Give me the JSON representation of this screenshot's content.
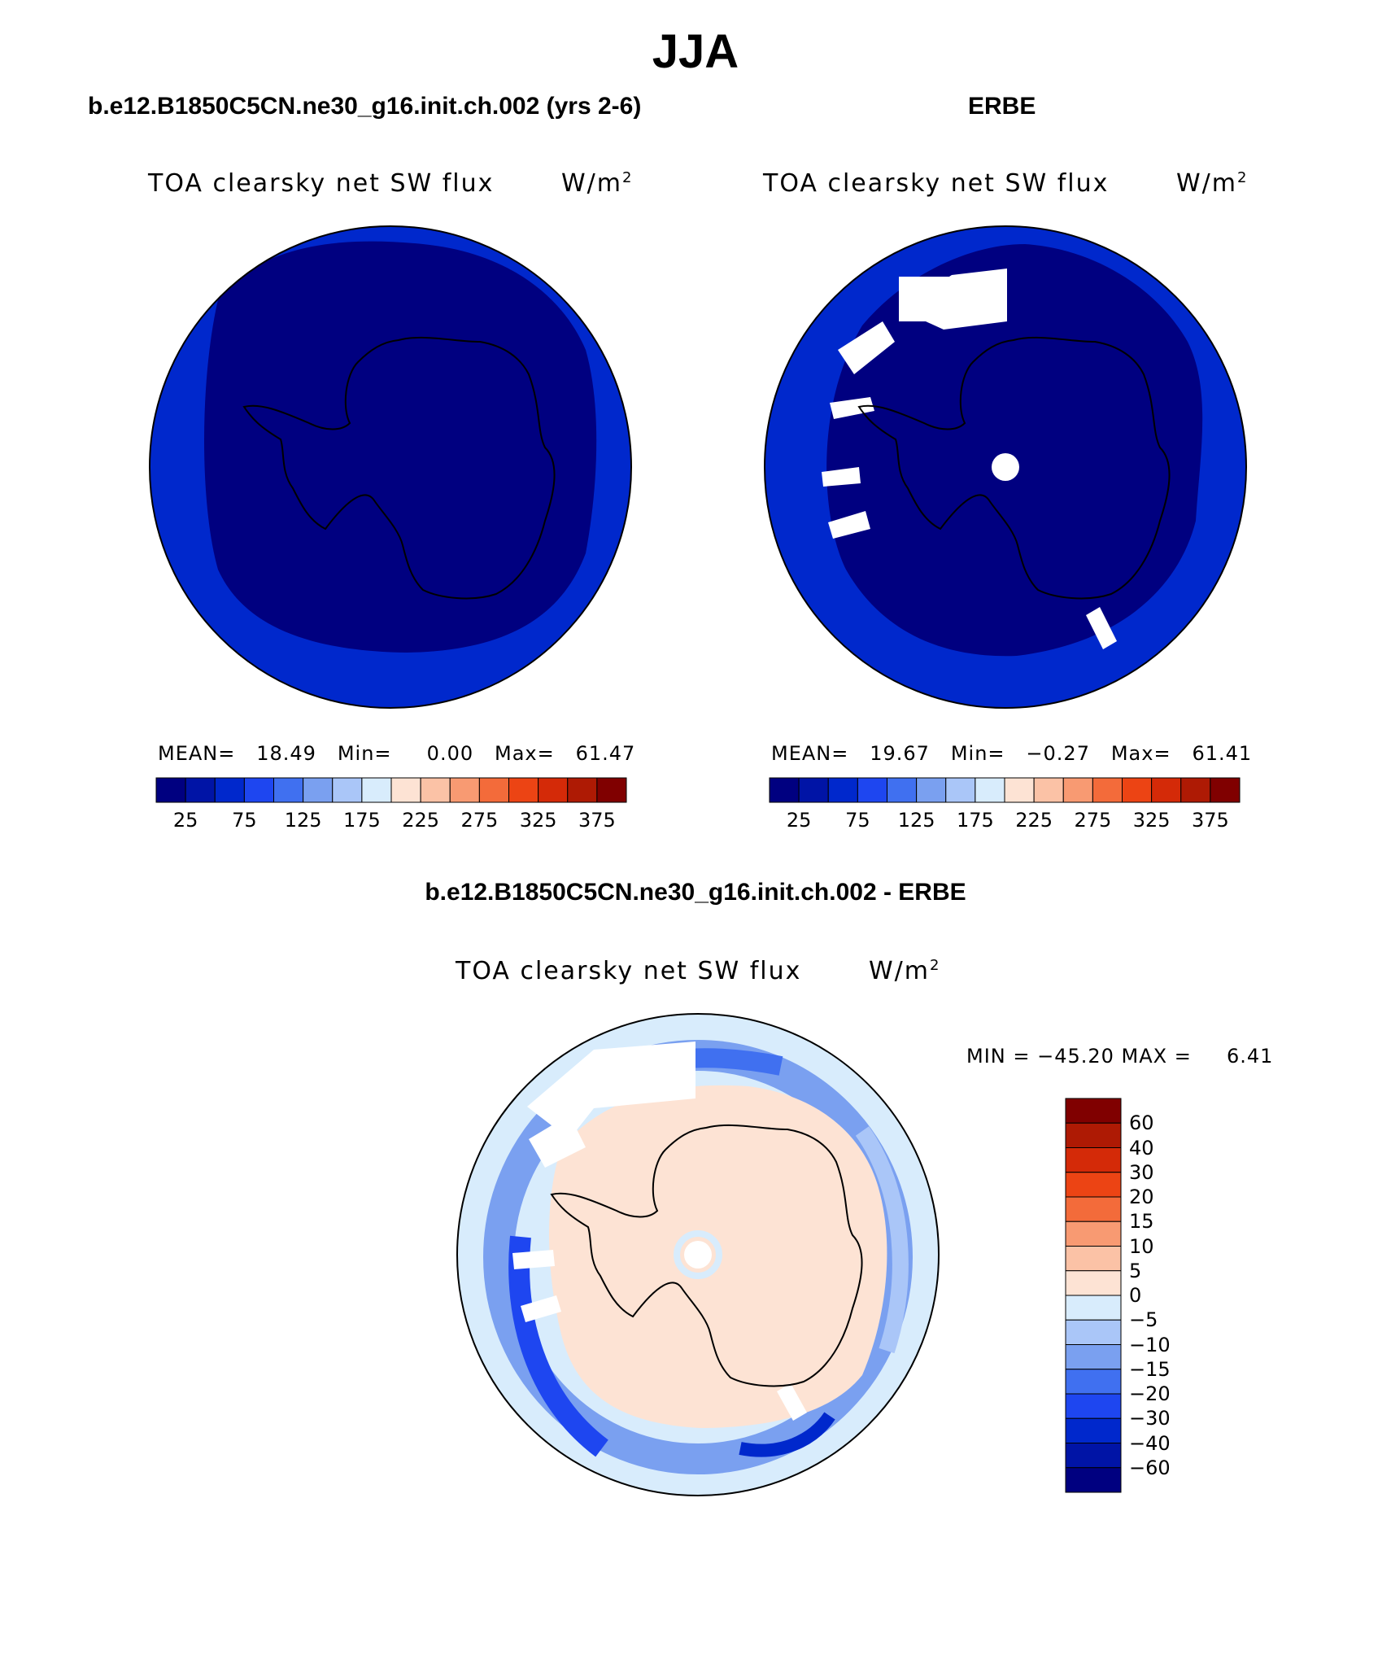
{
  "figure_title": "JJA",
  "colors": {
    "abs_scale": [
      "#000080",
      "#0014a6",
      "#0028cc",
      "#1e46f0",
      "#4070f0",
      "#7aa0f0",
      "#aac6f8",
      "#d8ecfc",
      "#fde3d4",
      "#fbc2a6",
      "#f89a72",
      "#f36b3a",
      "#ec4414",
      "#d42a08",
      "#ae1a04",
      "#800000"
    ],
    "diff_scale": [
      "#000080",
      "#0014a6",
      "#0028cc",
      "#1e46f0",
      "#4070f0",
      "#7aa0f0",
      "#aac6f8",
      "#d8ecfc",
      "#fde3d4",
      "#fbc2a6",
      "#f89a72",
      "#f36b3a",
      "#ec4414",
      "#d42a08",
      "#ae1a04",
      "#800000"
    ],
    "coastline": "#000000",
    "missing": "#ffffff"
  },
  "panels": [
    {
      "title": "b.e12.B1850C5CN.ne30_g16.init.ch.002 (yrs 2-6)",
      "variable": "TOA clearsky net SW flux",
      "units": "W/m",
      "units_sup": "2",
      "stats": "MEAN=   18.49   Min=     0.00   Max=   61.47",
      "colorbar_ticks": [
        "25",
        "75",
        "125",
        "175",
        "225",
        "275",
        "325",
        "375"
      ]
    },
    {
      "title": "ERBE",
      "variable": "TOA clearsky net SW flux",
      "units": "W/m",
      "units_sup": "2",
      "stats": "MEAN=   19.67   Min=   −0.27   Max=   61.41",
      "colorbar_ticks": [
        "25",
        "75",
        "125",
        "175",
        "225",
        "275",
        "325",
        "375"
      ]
    },
    {
      "title": "b.e12.B1850C5CN.ne30_g16.init.ch.002 - ERBE",
      "variable": "TOA clearsky net SW flux",
      "units": "W/m",
      "units_sup": "2",
      "stats": "MIN = −45.20 MAX =     6.41",
      "colorbar_ticks": [
        "60",
        "40",
        "30",
        "20",
        "15",
        "10",
        "5",
        "0",
        "−5",
        "−10",
        "−15",
        "−20",
        "−30",
        "−40",
        "−60"
      ]
    }
  ]
}
